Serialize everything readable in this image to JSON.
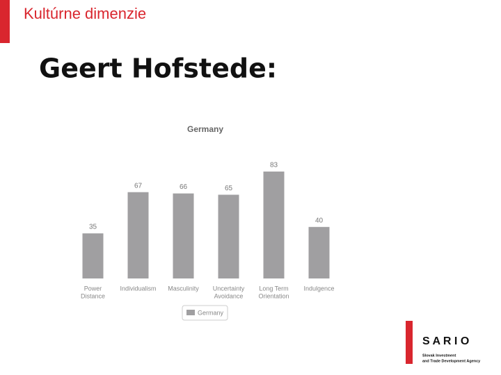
{
  "slide": {
    "title": "Kultúrne dimenzie",
    "heading": "Geert Hofstede:"
  },
  "chart_data": {
    "type": "bar",
    "title": "Germany",
    "categories": [
      [
        "Power",
        "Distance"
      ],
      [
        "Individualism"
      ],
      [
        "Masculinity"
      ],
      [
        "Uncertainty",
        "Avoidance"
      ],
      [
        "Long Term",
        "Orientation"
      ],
      [
        "Indulgence"
      ]
    ],
    "series": [
      {
        "name": "Germany",
        "color": "#a09fa1",
        "values": [
          35,
          67,
          66,
          65,
          83,
          40
        ]
      }
    ]
  },
  "logo": {
    "name": "S A R I O",
    "tagline": [
      "Slovak Investment",
      "and Trade Development Agency"
    ]
  }
}
